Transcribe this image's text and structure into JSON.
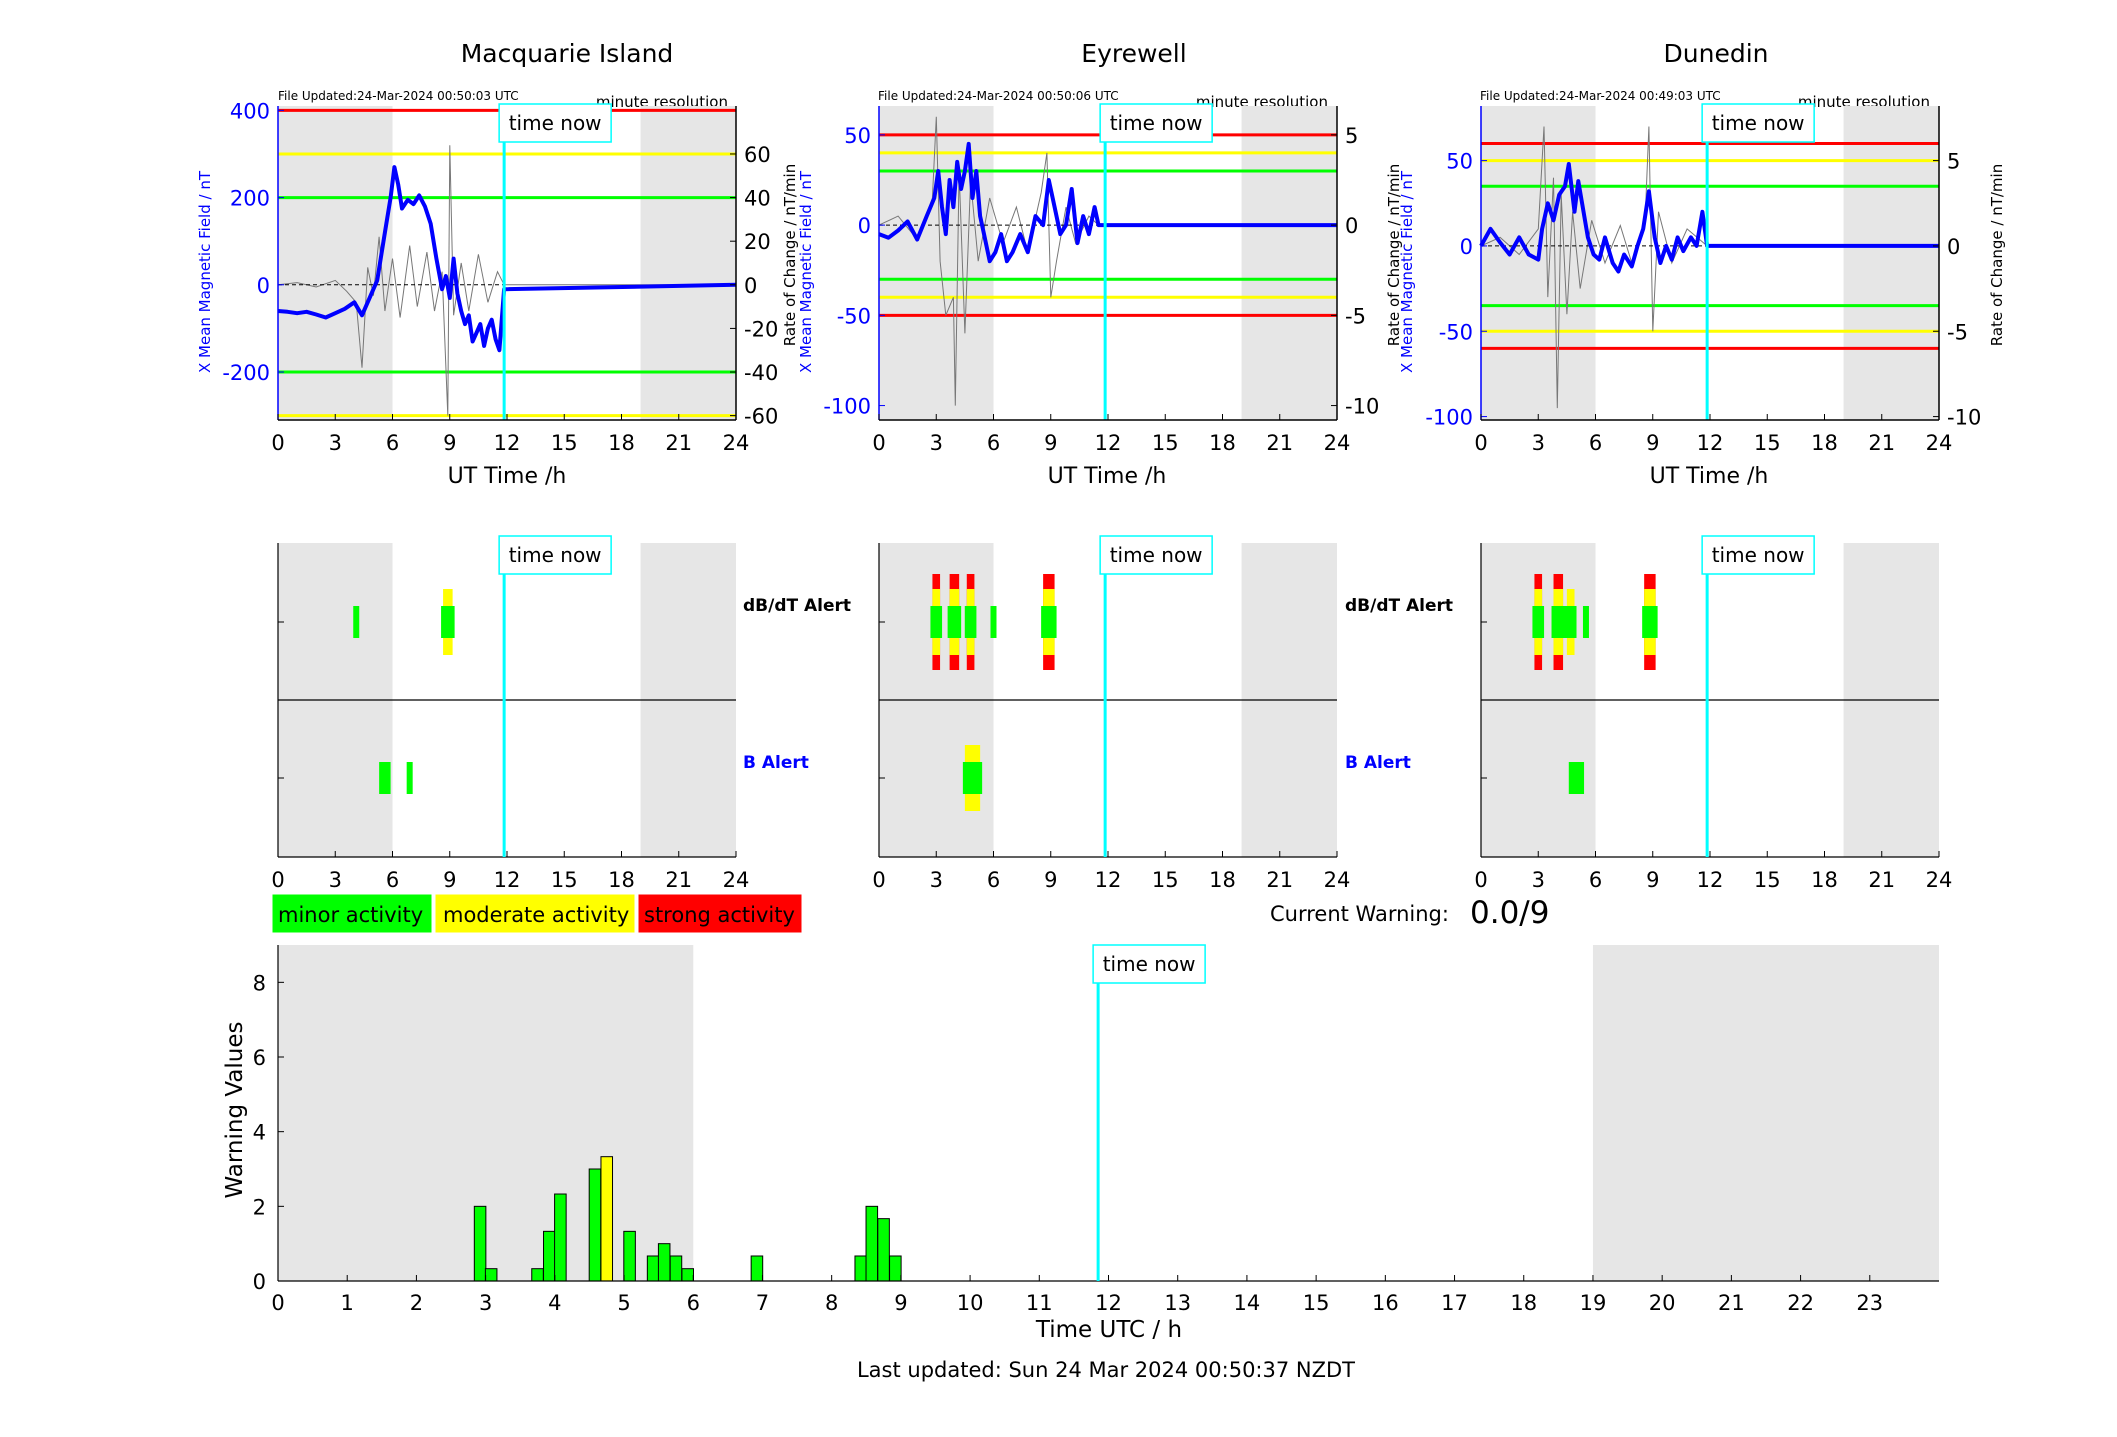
{
  "colors": {
    "minor": "#00ff00",
    "moderate": "#ffff00",
    "strong": "#ff0000",
    "field_line": "#0000ff",
    "time_now": "#00ffff",
    "night_shade": "#e6e6e6"
  },
  "labels": {
    "time_now": "time now",
    "dbdt_alert": "dB/dT Alert",
    "b_alert": "B Alert",
    "current_warning_label": "Current Warning:",
    "current_warning_value": "0.0/9",
    "last_updated": "Last updated: Sun 24 Mar 2024 00:50:37 NZDT"
  },
  "legend": [
    {
      "label": "minor activity",
      "level": "minor"
    },
    {
      "label": "moderate activity",
      "level": "moderate"
    },
    {
      "label": "strong activity",
      "level": "strong"
    }
  ],
  "chart_data": [
    {
      "type": "line",
      "station": "Macquarie Island",
      "file_updated": "File Updated:24-Mar-2024 00:50:03 UTC",
      "resolution": "minute resolution",
      "xlabel": "UT Time /h",
      "ylabel_left": "X Mean Magnetic Field / nT",
      "ylabel_right": "Rate of Change / nT/min",
      "xlim": [
        0,
        24
      ],
      "x_ticks": [
        0,
        3,
        6,
        9,
        12,
        15,
        18,
        21,
        24
      ],
      "ylim_left": [
        -310,
        410
      ],
      "y_ticks_left": [
        400,
        200,
        0,
        -200
      ],
      "ylim_right": [
        -62,
        82
      ],
      "y_ticks_right": [
        60,
        40,
        20,
        0,
        -20,
        -40,
        -60
      ],
      "time_now_h": 11.85,
      "night_shade_h": [
        [
          0,
          6
        ],
        [
          19,
          24
        ]
      ],
      "thresholds": [
        {
          "level": "strong",
          "value": 400
        },
        {
          "level": "moderate",
          "value": 300
        },
        {
          "level": "minor",
          "value": 200
        },
        {
          "level": "minor",
          "value": -200
        },
        {
          "level": "moderate",
          "value": -300
        }
      ],
      "x_mean_nT": [
        [
          0,
          -60
        ],
        [
          0.5,
          -62
        ],
        [
          1,
          -65
        ],
        [
          1.5,
          -62
        ],
        [
          2,
          -68
        ],
        [
          2.5,
          -75
        ],
        [
          3,
          -65
        ],
        [
          3.5,
          -55
        ],
        [
          4,
          -40
        ],
        [
          4.4,
          -70
        ],
        [
          4.8,
          -30
        ],
        [
          5.2,
          10
        ],
        [
          5.6,
          120
        ],
        [
          5.9,
          200
        ],
        [
          6.1,
          270
        ],
        [
          6.3,
          230
        ],
        [
          6.5,
          175
        ],
        [
          6.8,
          195
        ],
        [
          7.1,
          185
        ],
        [
          7.4,
          205
        ],
        [
          7.7,
          180
        ],
        [
          8,
          140
        ],
        [
          8.3,
          60
        ],
        [
          8.6,
          -10
        ],
        [
          8.8,
          20
        ],
        [
          9,
          -30
        ],
        [
          9.2,
          60
        ],
        [
          9.4,
          -20
        ],
        [
          9.6,
          -60
        ],
        [
          9.8,
          -90
        ],
        [
          10,
          -70
        ],
        [
          10.2,
          -130
        ],
        [
          10.4,
          -110
        ],
        [
          10.6,
          -90
        ],
        [
          10.8,
          -140
        ],
        [
          11,
          -100
        ],
        [
          11.2,
          -80
        ],
        [
          11.4,
          -125
        ],
        [
          11.6,
          -150
        ],
        [
          11.85,
          -10
        ],
        [
          24,
          0
        ]
      ],
      "rate_of_change_nT_min": [
        [
          0,
          0
        ],
        [
          1,
          1
        ],
        [
          2,
          -1
        ],
        [
          3,
          2
        ],
        [
          3.6,
          -3
        ],
        [
          4.1,
          -8
        ],
        [
          4.4,
          -38
        ],
        [
          4.7,
          8
        ],
        [
          5.0,
          -5
        ],
        [
          5.3,
          22
        ],
        [
          5.6,
          -12
        ],
        [
          6.0,
          12
        ],
        [
          6.4,
          -15
        ],
        [
          6.9,
          18
        ],
        [
          7.3,
          -10
        ],
        [
          7.8,
          15
        ],
        [
          8.2,
          -12
        ],
        [
          8.6,
          6
        ],
        [
          8.9,
          -60
        ],
        [
          9.0,
          64
        ],
        [
          9.2,
          -14
        ],
        [
          9.6,
          10
        ],
        [
          10,
          -12
        ],
        [
          10.5,
          14
        ],
        [
          11,
          -8
        ],
        [
          11.5,
          6
        ],
        [
          11.85,
          0
        ],
        [
          24,
          0
        ]
      ],
      "dbdt_alerts": [
        {
          "t": 4.1,
          "w": 0.3,
          "level": "minor"
        },
        {
          "t": 8.9,
          "w": 0.5,
          "level": "moderate"
        }
      ],
      "b_alerts": [
        {
          "t": 5.6,
          "w": 0.6,
          "level": "minor"
        },
        {
          "t": 6.9,
          "w": 0.3,
          "level": "minor"
        }
      ]
    },
    {
      "type": "line",
      "station": "Eyrewell",
      "file_updated": "File Updated:24-Mar-2024 00:50:06 UTC",
      "resolution": "minute resolution",
      "xlabel": "UT Time /h",
      "ylabel_left": "X Mean Magnetic Field / nT",
      "ylabel_right": "Rate of Change / nT/min",
      "xlim": [
        0,
        24
      ],
      "x_ticks": [
        0,
        3,
        6,
        9,
        12,
        15,
        18,
        21,
        24
      ],
      "ylim_left": [
        -108,
        66
      ],
      "y_ticks_left": [
        50,
        0,
        -50,
        -100
      ],
      "ylim_right": [
        -10.8,
        6.6
      ],
      "y_ticks_right": [
        5,
        0,
        -5,
        -10
      ],
      "time_now_h": 11.85,
      "night_shade_h": [
        [
          0,
          6
        ],
        [
          19,
          24
        ]
      ],
      "thresholds": [
        {
          "level": "strong",
          "value": 50
        },
        {
          "level": "moderate",
          "value": 40
        },
        {
          "level": "minor",
          "value": 30
        },
        {
          "level": "minor",
          "value": -30
        },
        {
          "level": "moderate",
          "value": -40
        },
        {
          "level": "strong",
          "value": -50
        }
      ],
      "x_mean_nT": [
        [
          0,
          -5
        ],
        [
          0.5,
          -7
        ],
        [
          1,
          -3
        ],
        [
          1.5,
          2
        ],
        [
          2,
          -8
        ],
        [
          2.5,
          5
        ],
        [
          2.9,
          15
        ],
        [
          3.1,
          30
        ],
        [
          3.3,
          10
        ],
        [
          3.5,
          -5
        ],
        [
          3.7,
          25
        ],
        [
          3.9,
          10
        ],
        [
          4.1,
          35
        ],
        [
          4.3,
          20
        ],
        [
          4.5,
          30
        ],
        [
          4.7,
          45
        ],
        [
          4.9,
          15
        ],
        [
          5.1,
          30
        ],
        [
          5.3,
          5
        ],
        [
          5.5,
          -5
        ],
        [
          5.8,
          -20
        ],
        [
          6.1,
          -15
        ],
        [
          6.4,
          -5
        ],
        [
          6.7,
          -20
        ],
        [
          7,
          -15
        ],
        [
          7.4,
          -5
        ],
        [
          7.8,
          -15
        ],
        [
          8.2,
          5
        ],
        [
          8.6,
          0
        ],
        [
          8.9,
          25
        ],
        [
          9.2,
          10
        ],
        [
          9.5,
          -5
        ],
        [
          9.8,
          0
        ],
        [
          10.1,
          20
        ],
        [
          10.4,
          -10
        ],
        [
          10.7,
          5
        ],
        [
          11,
          -5
        ],
        [
          11.3,
          10
        ],
        [
          11.5,
          0
        ],
        [
          24,
          0
        ]
      ],
      "rate_of_change_nT_min": [
        [
          0,
          0
        ],
        [
          1,
          0.5
        ],
        [
          2,
          -0.8
        ],
        [
          2.8,
          1.5
        ],
        [
          3.0,
          6
        ],
        [
          3.2,
          -2
        ],
        [
          3.5,
          -5
        ],
        [
          3.9,
          -4
        ],
        [
          4.0,
          -10
        ],
        [
          4.2,
          3
        ],
        [
          4.5,
          -6
        ],
        [
          4.8,
          2.5
        ],
        [
          5.2,
          -2
        ],
        [
          5.8,
          1.5
        ],
        [
          6.5,
          -1
        ],
        [
          7.2,
          1
        ],
        [
          7.8,
          -1.5
        ],
        [
          8.5,
          1.8
        ],
        [
          8.8,
          4
        ],
        [
          9.0,
          -4
        ],
        [
          9.3,
          -2
        ],
        [
          9.8,
          1
        ],
        [
          10.3,
          -1
        ],
        [
          11,
          0.5
        ],
        [
          11.5,
          0
        ],
        [
          24,
          0
        ]
      ],
      "dbdt_alerts": [
        {
          "t": 3.0,
          "w": 0.4,
          "level": "strong"
        },
        {
          "t": 3.95,
          "w": 0.5,
          "level": "strong"
        },
        {
          "t": 4.8,
          "w": 0.4,
          "level": "strong"
        },
        {
          "t": 6.0,
          "w": 0.3,
          "level": "minor"
        },
        {
          "t": 8.9,
          "w": 0.6,
          "level": "strong"
        }
      ],
      "b_alerts": [
        {
          "t": 4.9,
          "w": 0.8,
          "level": "moderate"
        }
      ]
    },
    {
      "type": "line",
      "station": "Dunedin",
      "file_updated": "File Updated:24-Mar-2024 00:49:03 UTC",
      "resolution": "minute resolution",
      "xlabel": "UT Time /h",
      "ylabel_left": "X Mean Magnetic Field / nT",
      "ylabel_right": "Rate of Change / nT/min",
      "xlim": [
        0,
        24
      ],
      "x_ticks": [
        0,
        3,
        6,
        9,
        12,
        15,
        18,
        21,
        24
      ],
      "ylim_left": [
        -102,
        82
      ],
      "y_ticks_left": [
        50,
        0,
        -50,
        -100
      ],
      "ylim_right": [
        -10.2,
        8.2
      ],
      "y_ticks_right": [
        5,
        0,
        -5,
        -10
      ],
      "time_now_h": 11.85,
      "night_shade_h": [
        [
          0,
          6
        ],
        [
          19,
          24
        ]
      ],
      "thresholds": [
        {
          "level": "strong",
          "value": 60
        },
        {
          "level": "moderate",
          "value": 50
        },
        {
          "level": "minor",
          "value": 35
        },
        {
          "level": "minor",
          "value": -35
        },
        {
          "level": "moderate",
          "value": -50
        },
        {
          "level": "strong",
          "value": -60
        }
      ],
      "x_mean_nT": [
        [
          0,
          0
        ],
        [
          0.5,
          10
        ],
        [
          1,
          2
        ],
        [
          1.5,
          -5
        ],
        [
          2,
          5
        ],
        [
          2.5,
          -5
        ],
        [
          3,
          -8
        ],
        [
          3.2,
          10
        ],
        [
          3.5,
          25
        ],
        [
          3.8,
          15
        ],
        [
          4.1,
          30
        ],
        [
          4.4,
          35
        ],
        [
          4.6,
          48
        ],
        [
          4.9,
          20
        ],
        [
          5.1,
          38
        ],
        [
          5.3,
          25
        ],
        [
          5.6,
          5
        ],
        [
          5.9,
          -5
        ],
        [
          6.2,
          -8
        ],
        [
          6.5,
          5
        ],
        [
          6.9,
          -10
        ],
        [
          7.2,
          -15
        ],
        [
          7.5,
          -5
        ],
        [
          7.9,
          -12
        ],
        [
          8.2,
          0
        ],
        [
          8.5,
          10
        ],
        [
          8.8,
          32
        ],
        [
          9.1,
          5
        ],
        [
          9.4,
          -10
        ],
        [
          9.7,
          0
        ],
        [
          10,
          -8
        ],
        [
          10.3,
          5
        ],
        [
          10.6,
          -3
        ],
        [
          11,
          5
        ],
        [
          11.3,
          0
        ],
        [
          11.6,
          20
        ],
        [
          11.85,
          0
        ],
        [
          24,
          0
        ]
      ],
      "rate_of_change_nT_min": [
        [
          0,
          0
        ],
        [
          1,
          0.5
        ],
        [
          2,
          -0.5
        ],
        [
          3,
          1
        ],
        [
          3.3,
          7
        ],
        [
          3.5,
          -3
        ],
        [
          3.8,
          4
        ],
        [
          4.0,
          -9.5
        ],
        [
          4.2,
          3
        ],
        [
          4.5,
          -4
        ],
        [
          4.8,
          2
        ],
        [
          5.2,
          -2.5
        ],
        [
          5.8,
          1.5
        ],
        [
          6.5,
          -1
        ],
        [
          7.3,
          1.2
        ],
        [
          7.9,
          -1
        ],
        [
          8.6,
          1.5
        ],
        [
          8.8,
          7
        ],
        [
          9.0,
          -5
        ],
        [
          9.3,
          2
        ],
        [
          10,
          -1
        ],
        [
          10.8,
          1
        ],
        [
          11.85,
          0
        ],
        [
          24,
          0
        ]
      ],
      "dbdt_alerts": [
        {
          "t": 3.0,
          "w": 0.4,
          "level": "strong"
        },
        {
          "t": 4.05,
          "w": 0.5,
          "level": "strong"
        },
        {
          "t": 4.7,
          "w": 0.4,
          "level": "moderate"
        },
        {
          "t": 5.5,
          "w": 0.3,
          "level": "minor"
        },
        {
          "t": 8.85,
          "w": 0.6,
          "level": "strong"
        }
      ],
      "b_alerts": [
        {
          "t": 5.0,
          "w": 0.8,
          "level": "minor"
        }
      ]
    },
    {
      "type": "bar",
      "xlabel": "Time UTC / h",
      "ylabel": "Warning Values",
      "xlim": [
        0,
        24
      ],
      "x_ticks": [
        0,
        1,
        2,
        3,
        4,
        5,
        6,
        7,
        8,
        9,
        10,
        11,
        12,
        13,
        14,
        15,
        16,
        17,
        18,
        19,
        20,
        21,
        22,
        23
      ],
      "ylim": [
        0,
        9
      ],
      "y_ticks": [
        0,
        2,
        4,
        6,
        8
      ],
      "time_now_h": 11.85,
      "night_shade_h": [
        [
          0,
          6
        ],
        [
          19,
          24
        ]
      ],
      "bar_width_h": 0.167,
      "bars": [
        {
          "t": 2.92,
          "v": 2.0,
          "level": "minor"
        },
        {
          "t": 3.08,
          "v": 0.33,
          "level": "minor"
        },
        {
          "t": 3.75,
          "v": 0.33,
          "level": "minor"
        },
        {
          "t": 3.92,
          "v": 1.33,
          "level": "minor"
        },
        {
          "t": 4.08,
          "v": 2.33,
          "level": "minor"
        },
        {
          "t": 4.58,
          "v": 3.0,
          "level": "minor"
        },
        {
          "t": 4.75,
          "v": 3.33,
          "level": "moderate"
        },
        {
          "t": 5.08,
          "v": 1.33,
          "level": "minor"
        },
        {
          "t": 5.42,
          "v": 0.67,
          "level": "minor"
        },
        {
          "t": 5.58,
          "v": 1.0,
          "level": "minor"
        },
        {
          "t": 5.75,
          "v": 0.67,
          "level": "minor"
        },
        {
          "t": 5.92,
          "v": 0.33,
          "level": "minor"
        },
        {
          "t": 6.92,
          "v": 0.67,
          "level": "minor"
        },
        {
          "t": 8.42,
          "v": 0.67,
          "level": "minor"
        },
        {
          "t": 8.58,
          "v": 2.0,
          "level": "minor"
        },
        {
          "t": 8.75,
          "v": 1.67,
          "level": "minor"
        },
        {
          "t": 8.92,
          "v": 0.67,
          "level": "minor"
        }
      ]
    }
  ]
}
